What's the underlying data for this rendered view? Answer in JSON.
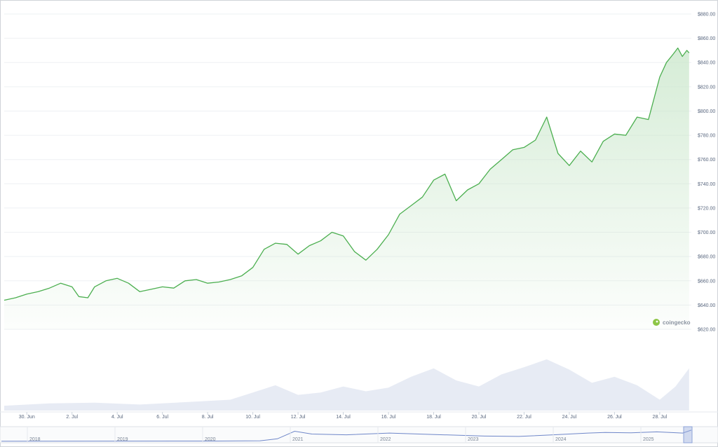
{
  "brand": {
    "name": "coingecko"
  },
  "colors": {
    "line": "#4caf50",
    "fill_top": "#c8e6c9",
    "volume": "#e3e8f2",
    "navigator_line": "#6f87c9"
  },
  "chart_data": {
    "type": "line",
    "title": "",
    "xlabel": "",
    "ylabel": "",
    "y_ticks": [
      "$880.00",
      "$860.00",
      "$840.00",
      "$820.00",
      "$800.00",
      "$780.00",
      "$760.00",
      "$740.00",
      "$720.00",
      "$700.00",
      "$680.00",
      "$660.00",
      "$640.00",
      "$620.00"
    ],
    "x_ticks": [
      "30. Jun",
      "2. Jul",
      "4. Jul",
      "6. Jul",
      "8. Jul",
      "10. Jul",
      "12. Jul",
      "14. Jul",
      "16. Jul",
      "18. Jul",
      "20. Jul",
      "22. Jul",
      "24. Jul",
      "26. Jul",
      "28. Jul"
    ],
    "ylim": [
      620,
      880
    ],
    "xlim": [
      0,
      30.4
    ],
    "grid": true,
    "series": [
      {
        "x": [
          0,
          0.5,
          1.0,
          1.5,
          2.0,
          2.5,
          3.0,
          3.3,
          3.7,
          4.0,
          4.5,
          5.0,
          5.5,
          6.0,
          6.5,
          7.0,
          7.5,
          8.0,
          8.5,
          9.0,
          9.5,
          10.0,
          10.5,
          11.0,
          11.5,
          12.0,
          12.5,
          13.0,
          13.5,
          14.0,
          14.5,
          15.0,
          15.5,
          16.0,
          16.5,
          17.0,
          17.5,
          18.0,
          18.5,
          19.0,
          19.5,
          20.0,
          20.5,
          21.0,
          21.5,
          22.0,
          22.5,
          23.0,
          23.5,
          24.0,
          24.5,
          25.0,
          25.5,
          26.0,
          26.5,
          27.0,
          27.5,
          28.0,
          28.5,
          29.0,
          29.3,
          29.6,
          29.8,
          30.0,
          30.2,
          30.3
        ],
        "y": [
          644,
          646,
          649,
          651,
          654,
          658,
          655,
          647,
          646,
          655,
          660,
          662,
          658,
          651,
          653,
          655,
          654,
          660,
          661,
          658,
          659,
          661,
          664,
          671,
          686,
          691,
          690,
          682,
          689,
          693,
          700,
          697,
          684,
          677,
          686,
          698,
          715,
          722,
          729,
          743,
          748,
          726,
          735,
          740,
          752,
          760,
          768,
          770,
          776,
          795,
          765,
          755,
          767,
          758,
          775,
          781,
          780,
          795,
          793,
          828,
          840,
          847,
          852,
          845,
          850,
          848
        ]
      }
    ],
    "volume": {
      "x": [
        0,
        2,
        4,
        6,
        8,
        10,
        11,
        12,
        13,
        14,
        15,
        16,
        17,
        18,
        19,
        20,
        21,
        22,
        23,
        24,
        25,
        26,
        27,
        28,
        29,
        29.7,
        30.3
      ],
      "y": [
        0.08,
        0.12,
        0.13,
        0.1,
        0.14,
        0.18,
        0.3,
        0.42,
        0.26,
        0.3,
        0.4,
        0.32,
        0.38,
        0.56,
        0.7,
        0.5,
        0.4,
        0.6,
        0.72,
        0.85,
        0.68,
        0.46,
        0.56,
        0.42,
        0.18,
        0.4,
        0.7
      ]
    },
    "navigator": {
      "labels": [
        "2018",
        "2019",
        "2020",
        "2021",
        "2022",
        "2023",
        "2024",
        "2025"
      ],
      "x": [
        0,
        2.5,
        3.0,
        3.2,
        3.4,
        3.6,
        4.0,
        4.5,
        5.0,
        5.6,
        6.0,
        6.4,
        6.8,
        7.0,
        7.3,
        7.6,
        7.9,
        8.0
      ],
      "y": [
        0.02,
        0.03,
        0.05,
        0.22,
        0.85,
        0.62,
        0.55,
        0.7,
        0.58,
        0.45,
        0.42,
        0.55,
        0.7,
        0.75,
        0.72,
        0.8,
        0.7,
        0.95
      ]
    }
  }
}
